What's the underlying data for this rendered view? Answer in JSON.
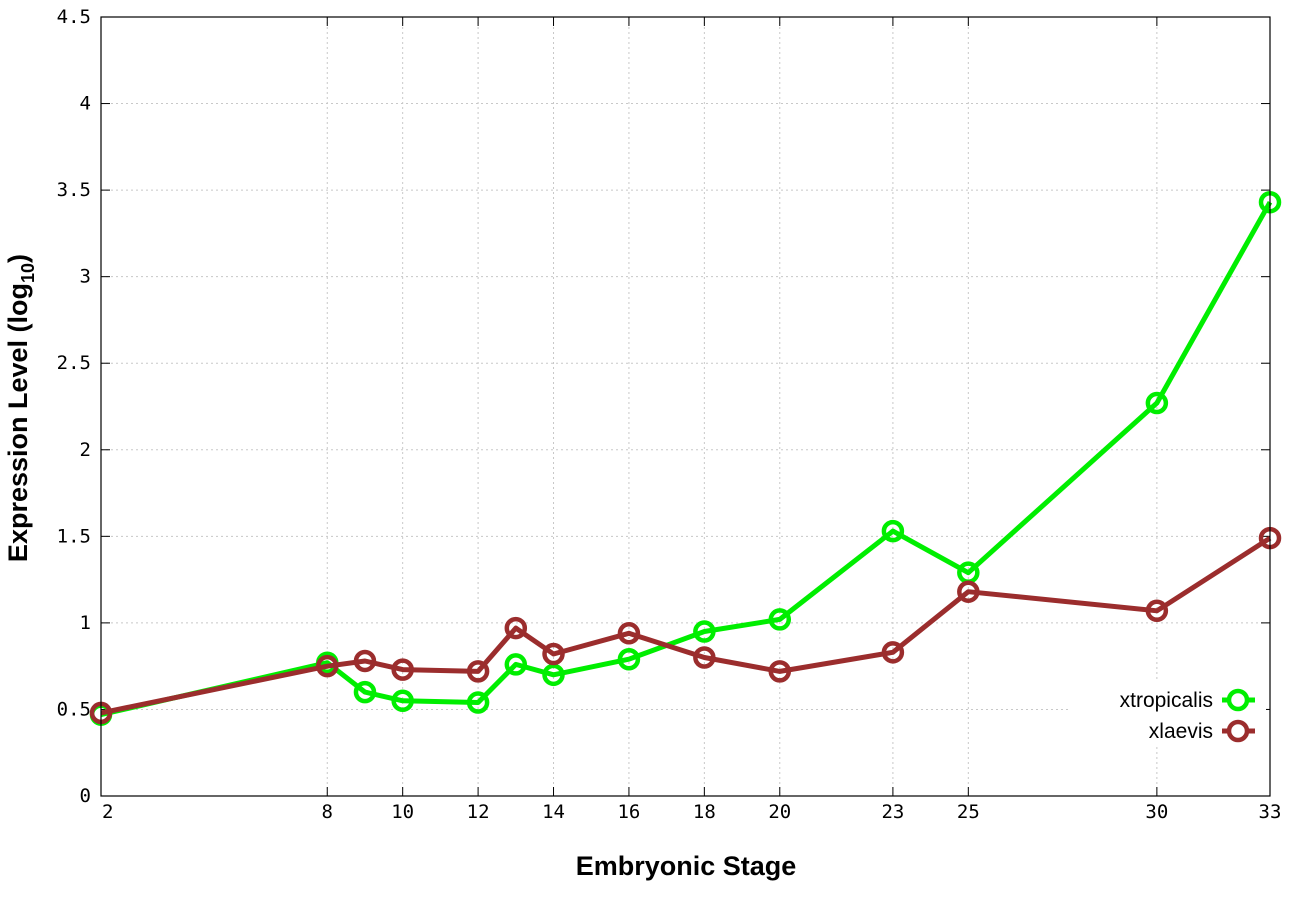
{
  "chart_data": {
    "type": "line",
    "title": "",
    "xlabel": "Embryonic Stage",
    "ylabel": {
      "prefix": "Expression Level (log",
      "subscript": "10",
      "suffix": ")"
    },
    "ylim": [
      0,
      4.5
    ],
    "yticks": [
      0,
      0.5,
      1,
      1.5,
      2,
      2.5,
      3,
      3.5,
      4,
      4.5
    ],
    "ytick_labels": [
      "0",
      "0.5",
      "1",
      "1.5",
      "2",
      "2.5",
      "3",
      "3.5",
      "4",
      "4.5"
    ],
    "x": [
      2,
      8,
      9,
      10,
      12,
      13,
      14,
      16,
      18,
      20,
      23,
      25,
      30,
      33
    ],
    "xticks": [
      2,
      8,
      10,
      12,
      14,
      16,
      18,
      20,
      23,
      25,
      30,
      33
    ],
    "xtick_labels": [
      "2",
      "8",
      "10",
      "12",
      "14",
      "16",
      "18",
      "20",
      "23",
      "25",
      "30",
      "33"
    ],
    "grid": true,
    "legend_position": "bottom-right",
    "series": [
      {
        "name": "xtropicalis",
        "color": "#00ee00",
        "values": [
          0.47,
          0.77,
          0.6,
          0.55,
          0.54,
          0.76,
          0.7,
          0.79,
          0.95,
          1.02,
          1.53,
          1.29,
          2.27,
          3.43
        ]
      },
      {
        "name": "xlaevis",
        "color": "#9b2d2d",
        "values": [
          0.48,
          0.75,
          0.78,
          0.73,
          0.72,
          0.97,
          0.82,
          0.94,
          0.8,
          0.72,
          0.83,
          1.18,
          1.07,
          1.49
        ]
      }
    ]
  }
}
